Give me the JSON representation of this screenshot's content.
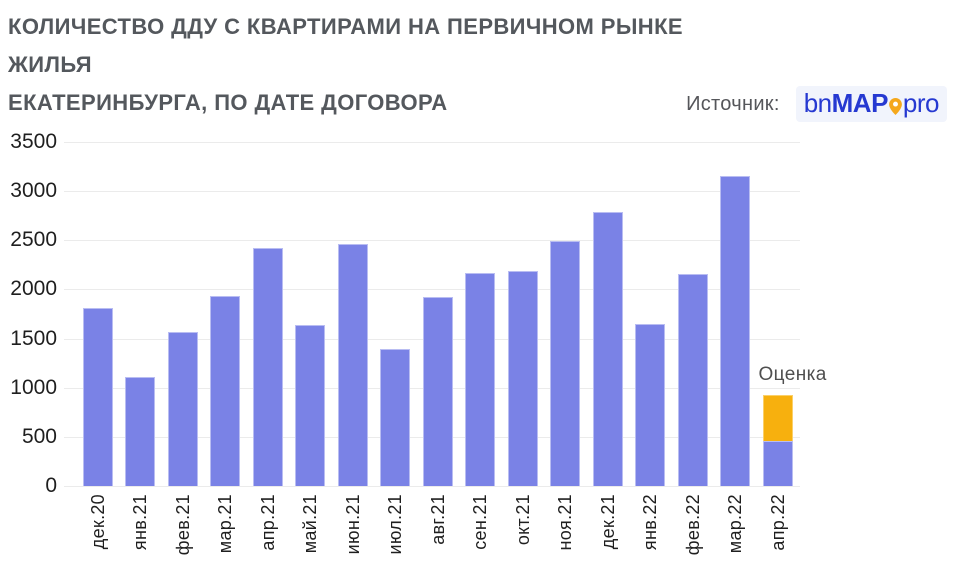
{
  "header": {
    "title_line1": "КОЛИЧЕСТВО ДДУ С КВАРТИРАМИ НА ПЕРВИЧНОМ РЫНКЕ ЖИЛЬЯ",
    "title_line2": "ЕКАТЕРИНБУРГА, ПО ДАТЕ ДОГОВОРА",
    "source_label": "Источник:",
    "logo": {
      "part_bn": "bn",
      "part_map": "MAP",
      "part_pro": "pro",
      "pin_icon": "map-pin-icon",
      "text_color": "#2639d1",
      "pin_color": "#f5a81c",
      "pin_hole_color": "#ffffff"
    }
  },
  "chart_data": {
    "type": "bar",
    "title": "КОЛИЧЕСТВО ДДУ С КВАРТИРАМИ НА ПЕРВИЧНОМ РЫНКЕ ЖИЛЬЯ ЕКАТЕРИНБУРГА, ПО ДАТЕ ДОГОВОРА",
    "categories": [
      "дек.20",
      "янв.21",
      "фев.21",
      "мар.21",
      "апр.21",
      "май.21",
      "июн.21",
      "июл.21",
      "авг.21",
      "сен.21",
      "окт.21",
      "ноя.21",
      "дек.21",
      "янв.22",
      "фев.22",
      "мар.22",
      "апр.22"
    ],
    "values": [
      1810,
      1110,
      1570,
      1930,
      2420,
      1640,
      2460,
      1390,
      1920,
      2170,
      2190,
      2490,
      2790,
      1650,
      2160,
      3150,
      460
    ],
    "estimate_segment": {
      "category": "апр.22",
      "category_index": 16,
      "from": 460,
      "to": 930,
      "annotation_label": "Оценка"
    },
    "ylim": [
      0,
      3500
    ],
    "yticks": [
      0,
      500,
      1000,
      1500,
      2000,
      2500,
      3000,
      3500
    ],
    "grid": true,
    "legend": "none",
    "xlabel": "",
    "ylabel": "",
    "bar_color": "#7a82e6",
    "estimate_color": "#f7b00e",
    "gridline_color": "#ebebeb",
    "axis_label_color": "#1f1f1f"
  }
}
